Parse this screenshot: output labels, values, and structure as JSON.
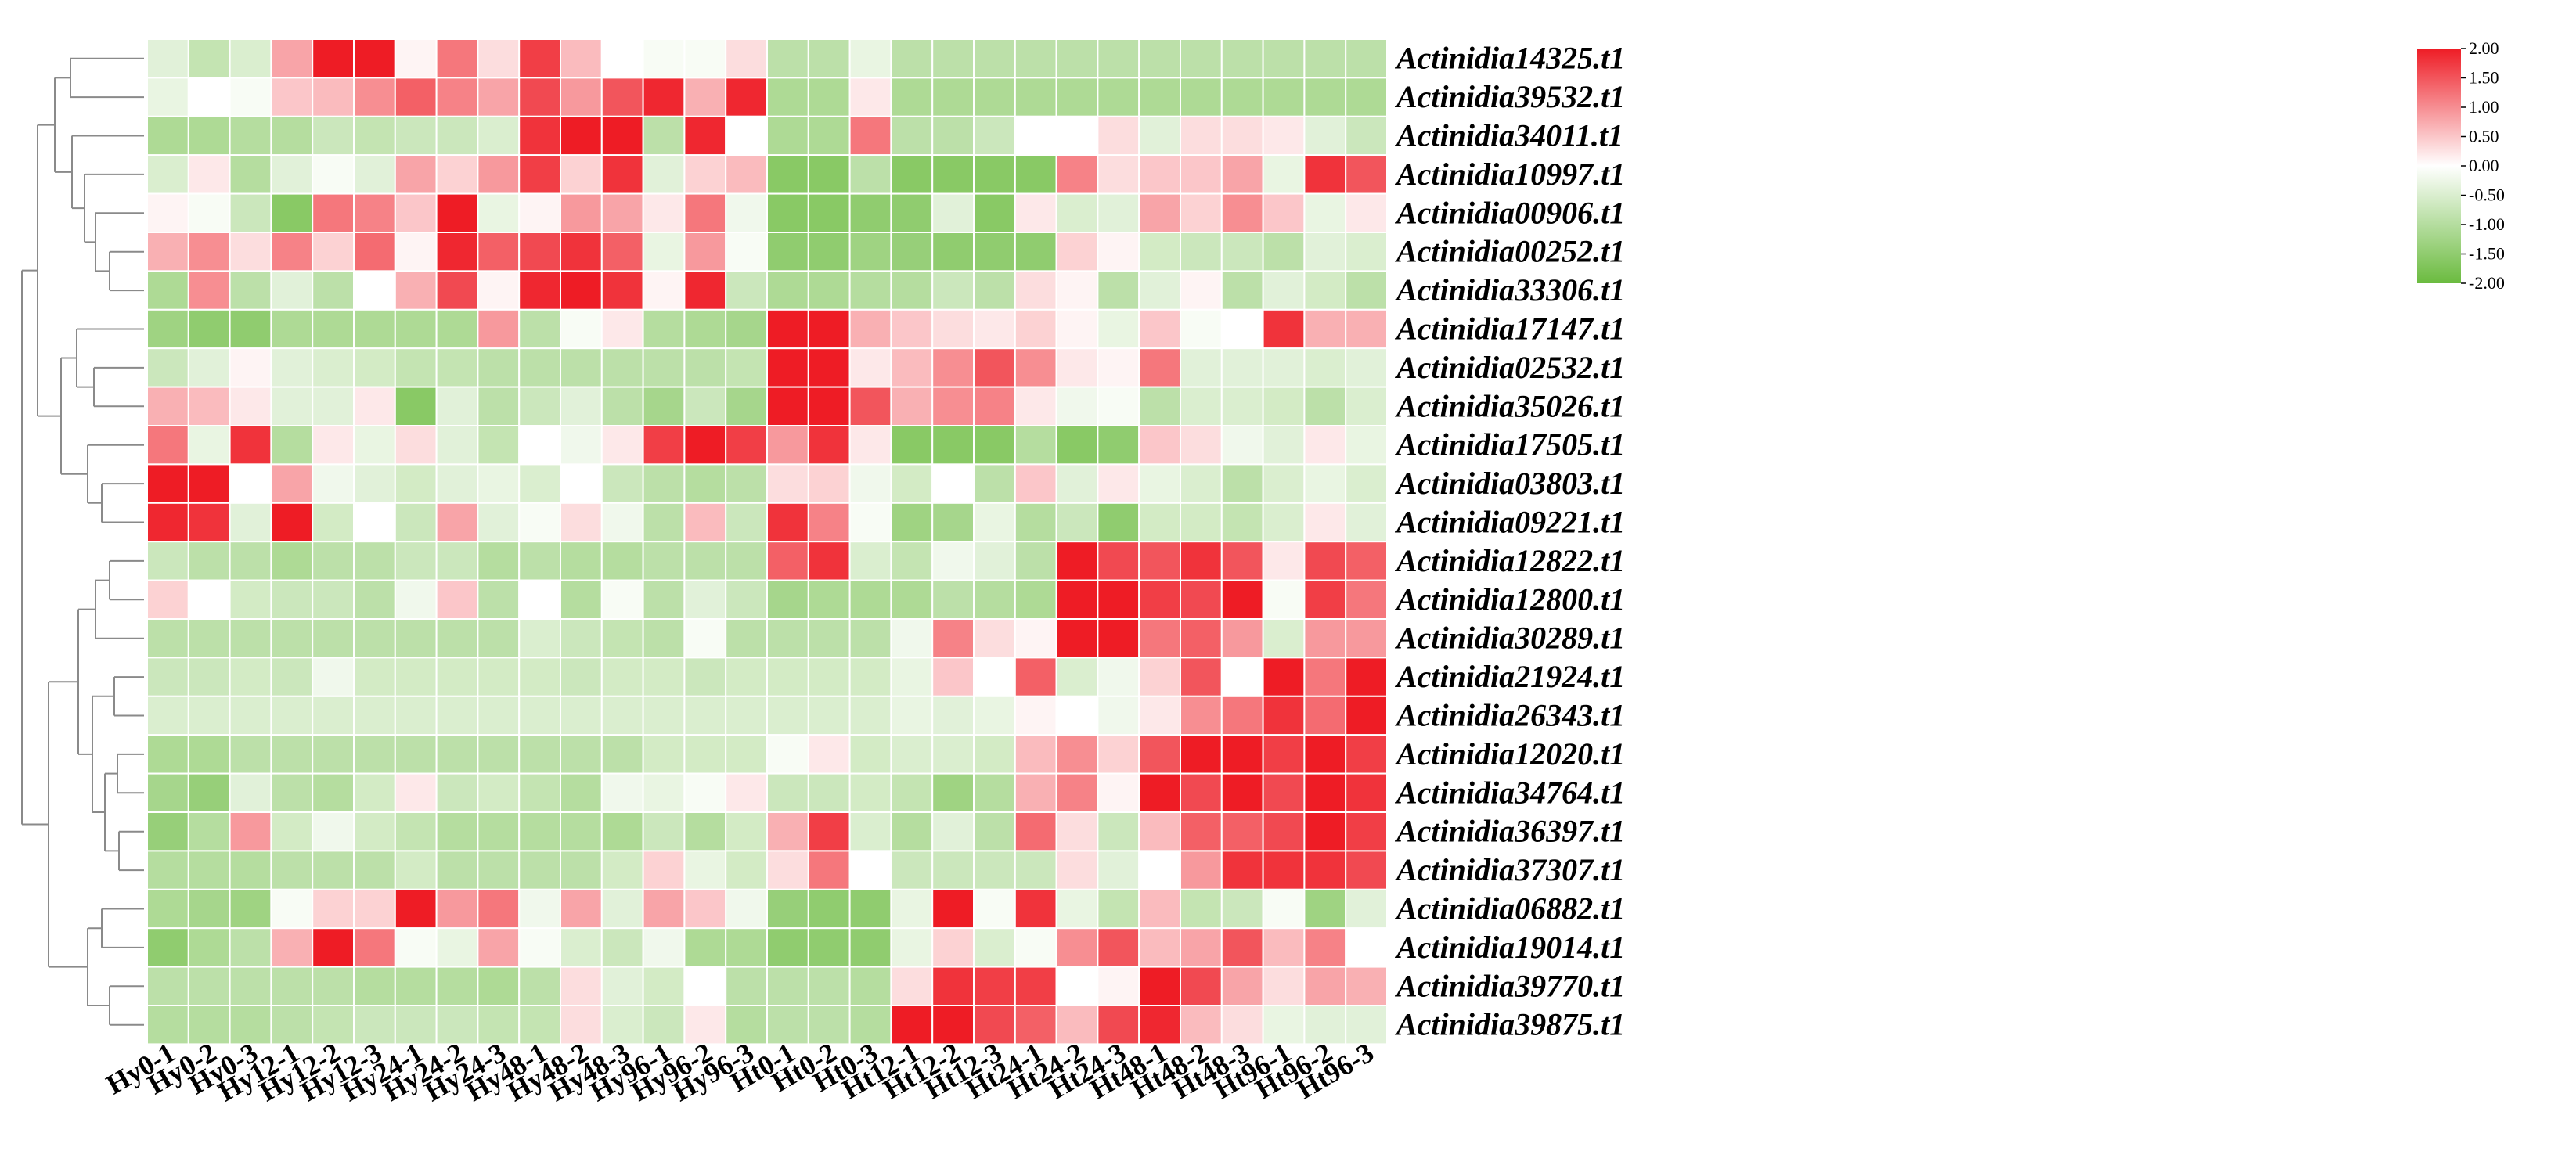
{
  "chart_data": {
    "type": "heatmap",
    "columns": [
      "Hy0-1",
      "Hy0-2",
      "Hy0-3",
      "Hy12-1",
      "Hy12-2",
      "Hy12-3",
      "Hy24-1",
      "Hy24-2",
      "Hy24-3",
      "Hy48-1",
      "Hy48-2",
      "Hy48-3",
      "Hy96-1",
      "Hy96-2",
      "Hy96-3",
      "Ht0-1",
      "Ht0-2",
      "Ht0-3",
      "Ht12-1",
      "Ht12-2",
      "Ht12-3",
      "Ht24-1",
      "Ht24-2",
      "Ht24-3",
      "Ht48-1",
      "Ht48-2",
      "Ht48-3",
      "Ht96-1",
      "Ht96-2",
      "Ht96-3"
    ],
    "rows": [
      "Actinidia14325.t1",
      "Actinidia39532.t1",
      "Actinidia34011.t1",
      "Actinidia10997.t1",
      "Actinidia00906.t1",
      "Actinidia00252.t1",
      "Actinidia33306.t1",
      "Actinidia17147.t1",
      "Actinidia02532.t1",
      "Actinidia35026.t1",
      "Actinidia17505.t1",
      "Actinidia03803.t1",
      "Actinidia09221.t1",
      "Actinidia12822.t1",
      "Actinidia12800.t1",
      "Actinidia30289.t1",
      "Actinidia21924.t1",
      "Actinidia26343.t1",
      "Actinidia12020.t1",
      "Actinidia34764.t1",
      "Actinidia36397.t1",
      "Actinidia37307.t1",
      "Actinidia06882.t1",
      "Actinidia19014.t1",
      "Actinidia39770.t1",
      "Actinidia39875.t1"
    ],
    "values": [
      [
        -0.4,
        -0.8,
        -0.5,
        0.8,
        2.0,
        2.0,
        0.1,
        1.2,
        0.3,
        1.7,
        0.6,
        0.0,
        -0.1,
        -0.1,
        0.3,
        -0.9,
        -0.9,
        -0.3,
        -0.9,
        -0.9,
        -0.9,
        -0.9,
        -0.9,
        -0.9,
        -0.9,
        -0.9,
        -0.9,
        -0.9,
        -0.9,
        -0.9
      ],
      [
        -0.3,
        0.0,
        -0.1,
        0.5,
        0.6,
        1.0,
        1.4,
        1.1,
        0.8,
        1.6,
        0.9,
        1.5,
        1.9,
        0.7,
        1.9,
        -1.1,
        -1.1,
        0.2,
        -1.1,
        -1.1,
        -1.1,
        -1.1,
        -1.1,
        -1.1,
        -1.1,
        -1.1,
        -1.1,
        -1.1,
        -1.1,
        -1.1
      ],
      [
        -1.1,
        -1.1,
        -1.0,
        -1.0,
        -0.7,
        -0.8,
        -0.7,
        -0.7,
        -0.5,
        1.8,
        2.0,
        2.0,
        -0.9,
        1.9,
        0.0,
        -1.1,
        -1.1,
        1.2,
        -0.9,
        -0.9,
        -0.7,
        0.0,
        0.0,
        0.3,
        -0.4,
        0.3,
        0.3,
        0.2,
        -0.4,
        -0.7
      ],
      [
        -0.5,
        0.2,
        -1.0,
        -0.4,
        -0.1,
        -0.4,
        0.8,
        0.4,
        0.9,
        1.7,
        0.4,
        1.8,
        -0.4,
        0.4,
        0.6,
        -1.6,
        -1.6,
        -0.9,
        -1.6,
        -1.6,
        -1.6,
        -1.6,
        1.1,
        0.3,
        0.5,
        0.5,
        0.8,
        -0.3,
        1.8,
        1.5
      ],
      [
        0.1,
        -0.1,
        -0.7,
        -1.6,
        1.2,
        1.1,
        0.5,
        2.0,
        -0.3,
        0.1,
        0.9,
        0.8,
        0.2,
        1.2,
        -0.2,
        -1.6,
        -1.6,
        -1.5,
        -1.5,
        -0.4,
        -1.6,
        0.2,
        -0.5,
        -0.4,
        0.8,
        0.4,
        1.0,
        0.5,
        -0.3,
        0.2
      ],
      [
        0.7,
        1.0,
        0.3,
        1.1,
        0.4,
        1.3,
        0.1,
        1.9,
        1.4,
        1.6,
        1.8,
        1.4,
        -0.3,
        0.9,
        -0.1,
        -1.5,
        -1.5,
        -1.3,
        -1.4,
        -1.5,
        -1.5,
        -1.5,
        0.4,
        0.1,
        -0.6,
        -0.7,
        -0.7,
        -0.9,
        -0.4,
        -0.5
      ],
      [
        -1.1,
        1.0,
        -0.9,
        -0.4,
        -0.9,
        0.0,
        0.7,
        1.6,
        0.1,
        1.9,
        2.0,
        1.8,
        0.1,
        1.9,
        -0.7,
        -1.1,
        -1.1,
        -1.0,
        -1.0,
        -0.7,
        -0.9,
        0.3,
        0.1,
        -0.9,
        -0.4,
        0.1,
        -0.9,
        -0.4,
        -0.6,
        -0.9
      ],
      [
        -1.3,
        -1.5,
        -1.5,
        -1.1,
        -1.1,
        -1.1,
        -1.1,
        -1.1,
        0.9,
        -0.9,
        -0.1,
        0.2,
        -1.0,
        -1.1,
        -1.2,
        2.0,
        2.0,
        0.7,
        0.5,
        0.3,
        0.2,
        0.4,
        0.1,
        -0.3,
        0.5,
        -0.1,
        0.0,
        1.8,
        0.7,
        0.7
      ],
      [
        -0.7,
        -0.4,
        0.1,
        -0.4,
        -0.5,
        -0.6,
        -0.8,
        -0.8,
        -0.9,
        -0.9,
        -0.9,
        -0.9,
        -0.9,
        -0.9,
        -0.8,
        2.0,
        2.0,
        0.2,
        0.6,
        1.0,
        1.5,
        1.0,
        0.2,
        0.1,
        1.2,
        -0.4,
        -0.4,
        -0.4,
        -0.5,
        -0.4
      ],
      [
        0.7,
        0.6,
        0.2,
        -0.4,
        -0.4,
        0.2,
        -1.6,
        -0.4,
        -0.9,
        -0.7,
        -0.4,
        -0.9,
        -1.2,
        -0.7,
        -1.2,
        2.0,
        2.0,
        1.5,
        0.7,
        1.0,
        1.1,
        0.2,
        -0.2,
        -0.1,
        -0.9,
        -0.5,
        -0.5,
        -0.6,
        -0.9,
        -0.5
      ],
      [
        1.2,
        -0.3,
        1.8,
        -1.0,
        0.2,
        -0.3,
        0.3,
        -0.4,
        -0.8,
        0.0,
        -0.2,
        0.2,
        1.7,
        2.0,
        1.7,
        0.9,
        1.8,
        0.2,
        -1.6,
        -1.6,
        -1.6,
        -1.0,
        -1.6,
        -1.5,
        0.5,
        0.3,
        -0.2,
        -0.4,
        0.2,
        -0.3
      ],
      [
        2.0,
        2.0,
        0.0,
        0.8,
        -0.2,
        -0.4,
        -0.6,
        -0.4,
        -0.3,
        -0.5,
        0.0,
        -0.7,
        -0.9,
        -1.0,
        -0.9,
        0.3,
        0.4,
        -0.2,
        -0.6,
        0.0,
        -0.9,
        0.5,
        -0.4,
        0.2,
        -0.3,
        -0.5,
        -0.9,
        -0.5,
        -0.3,
        -0.5
      ],
      [
        1.9,
        1.8,
        -0.4,
        2.0,
        -0.6,
        0.0,
        -0.7,
        0.8,
        -0.4,
        -0.1,
        0.3,
        -0.2,
        -0.9,
        0.6,
        -0.7,
        1.8,
        1.1,
        -0.1,
        -1.3,
        -1.2,
        -0.3,
        -1.0,
        -0.7,
        -1.5,
        -0.6,
        -0.6,
        -0.8,
        -0.5,
        0.2,
        -0.4
      ],
      [
        -0.7,
        -0.9,
        -0.9,
        -1.1,
        -0.9,
        -0.9,
        -0.7,
        -0.7,
        -1.0,
        -0.9,
        -1.0,
        -1.0,
        -0.9,
        -0.9,
        -0.9,
        1.4,
        1.8,
        -0.5,
        -0.8,
        -0.2,
        -0.4,
        -0.9,
        2.0,
        1.6,
        1.5,
        1.8,
        1.5,
        0.2,
        1.6,
        1.4
      ],
      [
        0.4,
        0.0,
        -0.6,
        -0.7,
        -0.7,
        -0.9,
        -0.2,
        0.5,
        -0.9,
        0.0,
        -1.0,
        -0.1,
        -0.9,
        -0.4,
        -0.7,
        -1.2,
        -1.1,
        -1.1,
        -1.1,
        -0.9,
        -1.0,
        -1.1,
        2.0,
        2.0,
        1.7,
        1.6,
        2.0,
        -0.1,
        1.7,
        1.2
      ],
      [
        -0.9,
        -0.9,
        -0.9,
        -0.9,
        -0.9,
        -0.9,
        -0.9,
        -0.9,
        -0.9,
        -0.5,
        -0.7,
        -0.8,
        -0.9,
        -0.1,
        -0.9,
        -0.9,
        -0.9,
        -0.9,
        -0.2,
        1.1,
        0.3,
        0.1,
        2.0,
        2.0,
        1.2,
        1.4,
        0.9,
        -0.5,
        0.9,
        0.9
      ],
      [
        -0.7,
        -0.7,
        -0.6,
        -0.7,
        -0.2,
        -0.6,
        -0.6,
        -0.6,
        -0.6,
        -0.6,
        -0.7,
        -0.6,
        -0.6,
        -0.7,
        -0.6,
        -0.6,
        -0.6,
        -0.6,
        -0.3,
        0.5,
        0.0,
        1.4,
        -0.5,
        -0.2,
        0.4,
        1.5,
        0.0,
        2.0,
        1.2,
        2.0
      ],
      [
        -0.5,
        -0.5,
        -0.5,
        -0.5,
        -0.5,
        -0.5,
        -0.5,
        -0.5,
        -0.5,
        -0.5,
        -0.5,
        -0.5,
        -0.5,
        -0.5,
        -0.5,
        -0.5,
        -0.5,
        -0.5,
        -0.3,
        -0.4,
        -0.3,
        0.1,
        0.0,
        -0.2,
        0.2,
        1.0,
        1.2,
        1.8,
        1.3,
        2.0
      ],
      [
        -1.1,
        -1.1,
        -0.9,
        -0.9,
        -0.9,
        -0.9,
        -0.9,
        -0.9,
        -0.9,
        -0.9,
        -0.9,
        -0.9,
        -0.6,
        -0.6,
        -0.6,
        -0.1,
        0.2,
        -0.6,
        -0.5,
        -0.5,
        -0.6,
        0.6,
        1.0,
        0.4,
        1.5,
        2.0,
        2.0,
        1.7,
        2.0,
        1.7
      ],
      [
        -1.2,
        -1.4,
        -0.4,
        -0.9,
        -1.0,
        -0.6,
        0.2,
        -0.7,
        -0.6,
        -0.8,
        -1.0,
        -0.2,
        -0.3,
        -0.1,
        0.2,
        -0.7,
        -0.7,
        -0.6,
        -0.8,
        -1.3,
        -1.0,
        0.7,
        1.1,
        0.1,
        2.0,
        1.6,
        2.0,
        1.6,
        2.0,
        1.8
      ],
      [
        -1.4,
        -1.0,
        0.9,
        -0.6,
        -0.2,
        -0.6,
        -0.8,
        -1.0,
        -1.0,
        -1.0,
        -1.0,
        -1.1,
        -0.7,
        -1.0,
        -0.6,
        0.7,
        1.7,
        -0.5,
        -1.0,
        -0.4,
        -0.9,
        1.3,
        0.3,
        -0.7,
        0.6,
        1.4,
        1.4,
        1.6,
        2.0,
        1.7
      ],
      [
        -1.0,
        -1.0,
        -1.0,
        -0.9,
        -0.9,
        -0.9,
        -0.6,
        -0.9,
        -0.9,
        -0.9,
        -0.9,
        -0.6,
        0.4,
        -0.3,
        -0.6,
        0.3,
        1.2,
        0.0,
        -0.7,
        -0.7,
        -0.7,
        -0.7,
        0.3,
        -0.4,
        0.0,
        0.9,
        1.8,
        1.8,
        1.8,
        1.6
      ],
      [
        -1.1,
        -1.2,
        -1.3,
        -0.1,
        0.4,
        0.4,
        2.0,
        0.9,
        1.2,
        -0.2,
        0.8,
        -0.4,
        0.8,
        0.5,
        -0.2,
        -1.4,
        -1.5,
        -1.5,
        -0.3,
        2.0,
        -0.1,
        1.8,
        -0.3,
        -0.8,
        0.6,
        -0.8,
        -0.7,
        -0.1,
        -1.3,
        -0.4
      ],
      [
        -1.5,
        -1.1,
        -0.9,
        0.7,
        2.0,
        1.2,
        -0.1,
        -0.3,
        0.8,
        -0.1,
        -0.5,
        -0.7,
        -0.2,
        -1.1,
        -1.1,
        -1.5,
        -1.5,
        -1.5,
        -0.3,
        0.4,
        -0.5,
        -0.1,
        1.0,
        1.5,
        0.6,
        0.8,
        1.5,
        0.6,
        1.1,
        0.0
      ],
      [
        -0.9,
        -0.9,
        -0.9,
        -0.9,
        -0.9,
        -1.0,
        -1.0,
        -1.0,
        -1.1,
        -0.9,
        0.3,
        -0.4,
        -0.6,
        0.0,
        -0.9,
        -0.9,
        -0.9,
        -1.0,
        0.3,
        1.8,
        1.7,
        1.7,
        0.0,
        0.1,
        2.0,
        1.6,
        0.8,
        0.3,
        0.8,
        0.7
      ],
      [
        -1.0,
        -1.0,
        -1.0,
        -0.9,
        -0.8,
        -0.7,
        -0.7,
        -0.7,
        -0.8,
        -0.8,
        0.3,
        -0.5,
        -0.7,
        0.2,
        -1.0,
        -0.9,
        -0.9,
        -1.0,
        2.0,
        2.0,
        1.6,
        1.4,
        0.6,
        1.6,
        1.9,
        0.6,
        0.3,
        -0.3,
        -0.4,
        -0.4
      ]
    ],
    "legend": {
      "ticks": [
        "2.00",
        "1.50",
        "1.00",
        "0.50",
        "0.00",
        "-0.50",
        "-1.00",
        "-1.50",
        "-2.00"
      ],
      "range": [
        -2,
        2
      ],
      "position": "top-right",
      "colors": {
        "low": "#6bbb3f",
        "mid": "#ffffff",
        "high": "#ee1c25"
      }
    },
    "grid": true,
    "dendrogram": "rows"
  }
}
